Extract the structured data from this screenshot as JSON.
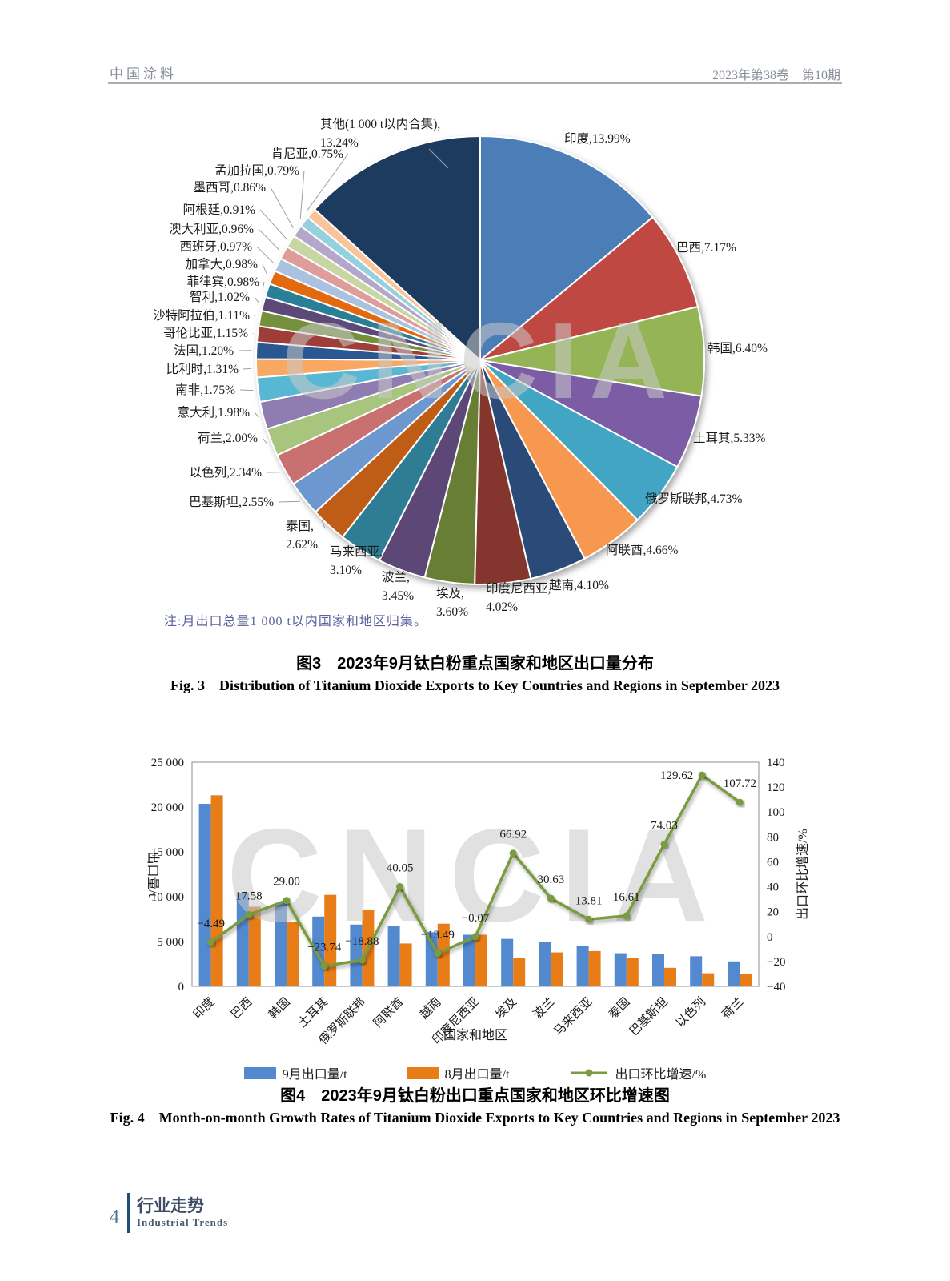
{
  "header": {
    "journal": "中国涂料",
    "issue": "2023年第38卷　第10期"
  },
  "fig3": {
    "note": "注:月出口总量1 000 t以内国家和地区归集。",
    "caption_zh": "图3　2023年9月钛白粉重点国家和地区出口量分布",
    "caption_en": "Fig. 3　Distribution of Titanium Dioxide Exports to Key Countries and Regions in September 2023",
    "watermark": "CNCIA"
  },
  "fig4": {
    "caption_zh": "图4　2023年9月钛白粉出口重点国家和地区环比增速图",
    "caption_en": "Fig. 4　Month-on-month Growth Rates of Titanium Dioxide Exports to Key Countries and Regions in September  2023",
    "watermark": "CNCIA"
  },
  "footer": {
    "page_number": "4",
    "section_zh": "行业走势",
    "section_en": "Industrial Trends"
  },
  "chart_data": [
    {
      "type": "pie",
      "title": "2023年9月钛白粉重点国家和地区出口量分布",
      "unit": "%",
      "slices": [
        {
          "label": "印度",
          "value": 13.99,
          "color": "#4C7DB6"
        },
        {
          "label": "巴西",
          "value": 7.17,
          "color": "#BF4A43"
        },
        {
          "label": "韩国",
          "value": 6.4,
          "color": "#95B457"
        },
        {
          "label": "土耳其",
          "value": 5.33,
          "color": "#7B5CA5"
        },
        {
          "label": "俄罗斯联邦",
          "value": 4.73,
          "color": "#43A5C4"
        },
        {
          "label": "阿联酋",
          "value": 4.66,
          "color": "#F79851"
        },
        {
          "label": "越南",
          "value": 4.1,
          "color": "#2A4B78"
        },
        {
          "label": "印度尼西亚",
          "value": 4.02,
          "color": "#84342E"
        },
        {
          "label": "埃及",
          "value": 3.6,
          "color": "#697E35"
        },
        {
          "label": "波兰",
          "value": 3.45,
          "color": "#5C4677"
        },
        {
          "label": "马来西亚",
          "value": 3.1,
          "color": "#2E7D95"
        },
        {
          "label": "泰国",
          "value": 2.62,
          "color": "#BF5B12"
        },
        {
          "label": "巴基斯坦",
          "value": 2.55,
          "color": "#6D97CF"
        },
        {
          "label": "以色列",
          "value": 2.34,
          "color": "#C96F6F"
        },
        {
          "label": "荷兰",
          "value": 2.0,
          "color": "#A8C57D"
        },
        {
          "label": "意大利",
          "value": 1.98,
          "color": "#8F7DB2"
        },
        {
          "label": "南非",
          "value": 1.75,
          "color": "#58B8D3"
        },
        {
          "label": "比利时",
          "value": 1.31,
          "color": "#F9A863"
        },
        {
          "label": "法国",
          "value": 1.2,
          "color": "#2C5791"
        },
        {
          "label": "哥伦比亚",
          "value": 1.15,
          "color": "#9F3D39"
        },
        {
          "label": "沙特阿拉伯",
          "value": 1.11,
          "color": "#75903C"
        },
        {
          "label": "智利",
          "value": 1.02,
          "color": "#5D4878"
        },
        {
          "label": "菲律宾",
          "value": 0.98,
          "color": "#2C7F98"
        },
        {
          "label": "加拿大",
          "value": 0.98,
          "color": "#E2690E"
        },
        {
          "label": "西班牙",
          "value": 0.97,
          "color": "#A9C2DF"
        },
        {
          "label": "澳大利亚",
          "value": 0.96,
          "color": "#DE9C9A"
        },
        {
          "label": "阿根廷",
          "value": 0.91,
          "color": "#C8D7A2"
        },
        {
          "label": "墨西哥",
          "value": 0.86,
          "color": "#B4A7CB"
        },
        {
          "label": "孟加拉国",
          "value": 0.79,
          "color": "#95D0DE"
        },
        {
          "label": "肯尼亚",
          "value": 0.75,
          "color": "#F9C499"
        },
        {
          "label": "其他(1 000 t以内合集)",
          "value": 13.24,
          "color": "#1E3A5F"
        }
      ]
    },
    {
      "type": "bar+line",
      "categories": [
        "印度",
        "巴西",
        "韩国",
        "土耳其",
        "俄罗斯联邦",
        "阿联酋",
        "越南",
        "印度尼西亚",
        "埃及",
        "波兰",
        "马来西亚",
        "泰国",
        "巴基斯坦",
        "以色列",
        "荷兰"
      ],
      "series": [
        {
          "name": "9月出口量/t",
          "type": "bar",
          "color": "#5389CF",
          "values": [
            20353,
            10450,
            9300,
            7786,
            6895,
            6700,
            6047,
            5760,
            5300,
            4950,
            4480,
            3700,
            3600,
            3360,
            2790
          ]
        },
        {
          "name": "8月出口量/t",
          "type": "bar",
          "color": "#E87D18",
          "values": [
            21310,
            8887,
            7209,
            10210,
            8500,
            4784,
            6990,
            5764,
            3175,
            3789,
            3936,
            3173,
            2069,
            1463,
            1343
          ]
        },
        {
          "name": "出口环比增速/%",
          "type": "line",
          "color": "#7A9B3F",
          "values": [
            -4.49,
            17.58,
            29.0,
            -23.74,
            -18.88,
            40.05,
            -13.49,
            -0.07,
            66.92,
            30.63,
            13.81,
            16.61,
            74.03,
            129.62,
            107.72
          ]
        }
      ],
      "xlabel": "国家和地区",
      "ylabel_left": "出口量/t",
      "ylabel_right": "出口环比增速/%",
      "ylim_left": [
        0,
        25000
      ],
      "ylim_right": [
        -40,
        140
      ],
      "yticks_left": [
        "0",
        "5 000",
        "10 000",
        "15 000",
        "20 000",
        "25 000"
      ],
      "yticks_right": [
        -40,
        -20,
        0,
        20,
        40,
        60,
        80,
        100,
        120,
        140
      ],
      "grid": false,
      "legend_position": "bottom"
    }
  ]
}
